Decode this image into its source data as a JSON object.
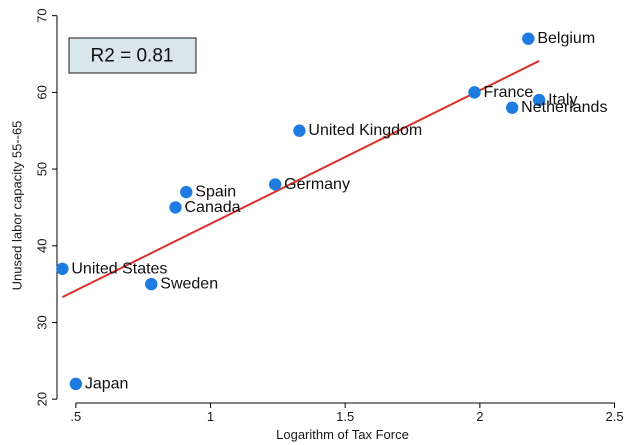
{
  "chart_data": {
    "type": "scatter",
    "title": "",
    "xlabel": "Logarithm of Tax Force",
    "ylabel": "Unused labor capacity 55--65",
    "xlim": [
      0.43,
      2.55
    ],
    "ylim": [
      19.5,
      71
    ],
    "x_ticks": [
      0.5,
      1,
      1.5,
      2,
      2.5
    ],
    "x_tick_labels": [
      ".5",
      "1",
      "1.5",
      "2",
      "2.5"
    ],
    "y_ticks": [
      20,
      30,
      40,
      50,
      60,
      70
    ],
    "y_tick_labels": [
      "20",
      "30",
      "40",
      "50",
      "60",
      "70"
    ],
    "grid": false,
    "annotation": "R2 = 0.81",
    "points": [
      {
        "label": "Belgium",
        "x": 2.18,
        "y": 67
      },
      {
        "label": "France",
        "x": 1.98,
        "y": 60
      },
      {
        "label": "Italy",
        "x": 2.22,
        "y": 59
      },
      {
        "label": "Netherlands",
        "x": 2.12,
        "y": 58
      },
      {
        "label": "United Kingdom",
        "x": 1.33,
        "y": 55
      },
      {
        "label": "Germany",
        "x": 1.24,
        "y": 48
      },
      {
        "label": "Spain",
        "x": 0.91,
        "y": 47
      },
      {
        "label": "Canada",
        "x": 0.87,
        "y": 45
      },
      {
        "label": "United States",
        "x": 0.45,
        "y": 37
      },
      {
        "label": "Sweden",
        "x": 0.78,
        "y": 35
      },
      {
        "label": "Japan",
        "x": 0.5,
        "y": 22
      }
    ],
    "fit_line": {
      "x": [
        0.45,
        2.22
      ],
      "y": [
        33.3,
        64.1
      ]
    },
    "colors": {
      "point": "#1e7be0",
      "fit_line": "#d9312b",
      "axis": "#000000"
    }
  }
}
